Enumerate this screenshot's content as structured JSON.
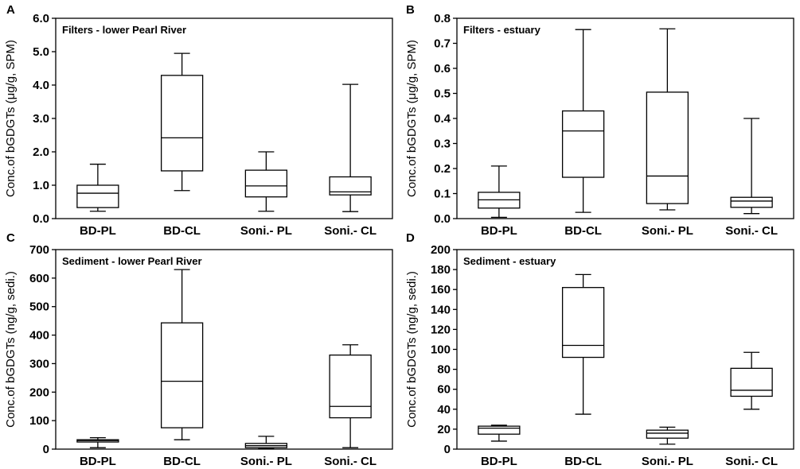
{
  "chart_data": [
    {
      "type": "box",
      "panel": "A",
      "title": "Filters - lower Pearl River",
      "ylabel": "Conc.of bGDGTs (μg/g, SPM)",
      "ylim": [
        0,
        6
      ],
      "yticks": [
        "0.0",
        "1.0",
        "2.0",
        "3.0",
        "4.0",
        "5.0",
        "6.0"
      ],
      "ytick_values": [
        0,
        1,
        2,
        3,
        4,
        5,
        6
      ],
      "categories": [
        "BD-PL",
        "BD-CL",
        "Soni.- PL",
        "Soni.- CL"
      ],
      "boxes": [
        {
          "min": 0.22,
          "q1": 0.33,
          "median": 0.76,
          "q3": 1.0,
          "max": 1.63
        },
        {
          "min": 0.84,
          "q1": 1.43,
          "median": 2.42,
          "q3": 4.29,
          "max": 4.95
        },
        {
          "min": 0.22,
          "q1": 0.65,
          "median": 0.98,
          "q3": 1.45,
          "max": 2.0
        },
        {
          "min": 0.21,
          "q1": 0.71,
          "median": 0.8,
          "q3": 1.25,
          "max": 4.02
        }
      ]
    },
    {
      "type": "box",
      "panel": "B",
      "title": "Filters - estuary",
      "ylabel": "Conc.of bGDGTs (μg/g, SPM)",
      "ylim": [
        0,
        0.8
      ],
      "yticks": [
        "0.0",
        "0.1",
        "0.2",
        "0.3",
        "0.4",
        "0.5",
        "0.6",
        "0.7",
        "0.8"
      ],
      "ytick_values": [
        0,
        0.1,
        0.2,
        0.3,
        0.4,
        0.5,
        0.6,
        0.7,
        0.8
      ],
      "categories": [
        "BD-PL",
        "BD-CL",
        "Soni.- PL",
        "Soni.- CL"
      ],
      "boxes": [
        {
          "min": 0.005,
          "q1": 0.042,
          "median": 0.075,
          "q3": 0.105,
          "max": 0.21
        },
        {
          "min": 0.025,
          "q1": 0.165,
          "median": 0.35,
          "q3": 0.43,
          "max": 0.755
        },
        {
          "min": 0.035,
          "q1": 0.06,
          "median": 0.17,
          "q3": 0.505,
          "max": 0.758
        },
        {
          "min": 0.02,
          "q1": 0.045,
          "median": 0.07,
          "q3": 0.085,
          "max": 0.4
        }
      ]
    },
    {
      "type": "box",
      "panel": "C",
      "title": "Sediment - lower Pearl River",
      "ylabel": "Conc.of bGDGTs (ng/g, sedi.)",
      "ylim": [
        0,
        700
      ],
      "yticks": [
        "0",
        "100",
        "200",
        "300",
        "400",
        "500",
        "600",
        "700"
      ],
      "ytick_values": [
        0,
        100,
        200,
        300,
        400,
        500,
        600,
        700
      ],
      "categories": [
        "BD-PL",
        "BD-CL",
        "Soni.- PL",
        "Soni.- CL"
      ],
      "boxes": [
        {
          "min": 5,
          "q1": 25,
          "median": 30,
          "q3": 33,
          "max": 40
        },
        {
          "min": 33,
          "q1": 75,
          "median": 238,
          "q3": 443,
          "max": 630
        },
        {
          "min": 2,
          "q1": 5,
          "median": 12,
          "q3": 20,
          "max": 45
        },
        {
          "min": 5,
          "q1": 110,
          "median": 150,
          "q3": 330,
          "max": 366
        }
      ]
    },
    {
      "type": "box",
      "panel": "D",
      "title": "Sediment - estuary",
      "ylabel": "Conc.of bGDGTs (ng/g, sedi.)",
      "ylim": [
        0,
        200
      ],
      "yticks": [
        "0",
        "20",
        "40",
        "60",
        "80",
        "100",
        "120",
        "140",
        "160",
        "180",
        "200"
      ],
      "ytick_values": [
        0,
        20,
        40,
        60,
        80,
        100,
        120,
        140,
        160,
        180,
        200
      ],
      "categories": [
        "BD-PL",
        "BD-CL",
        "Soni.- PL",
        "Soni.- CL"
      ],
      "boxes": [
        {
          "min": 8,
          "q1": 15,
          "median": 21,
          "q3": 23,
          "max": 24
        },
        {
          "min": 35,
          "q1": 92,
          "median": 104,
          "q3": 162,
          "max": 175
        },
        {
          "min": 5,
          "q1": 11,
          "median": 16,
          "q3": 19,
          "max": 22
        },
        {
          "min": 40,
          "q1": 53,
          "median": 59,
          "q3": 81,
          "max": 97
        }
      ]
    }
  ]
}
